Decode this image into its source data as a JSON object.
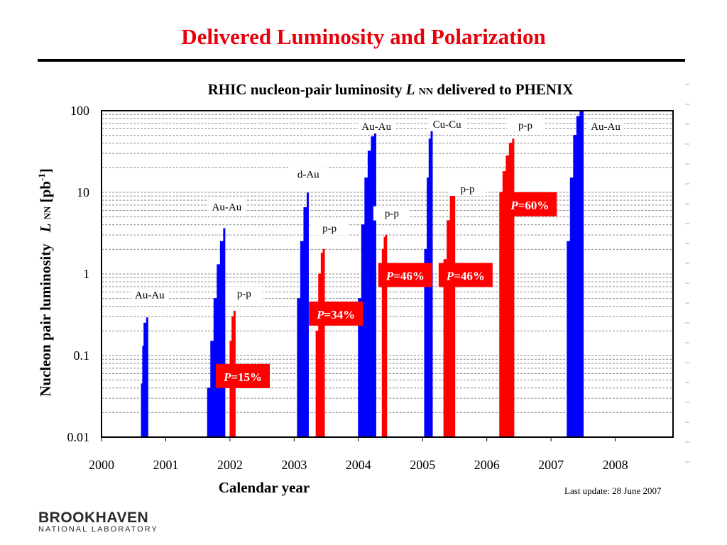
{
  "slide_title": "Delivered Luminosity and Polarization",
  "chart_title": {
    "prefix": "RHIC nucleon-pair luminosity ",
    "symbol": "L",
    "subscript": "NN",
    "suffix": " delivered to PHENIX"
  },
  "ylabel": {
    "text": "Nucleon pair luminosity",
    "symbol": "L",
    "subscript": "NN",
    "unit": "[pb",
    "unit_sup": "-1",
    "unit_close": "]"
  },
  "xlabel": "Calendar year",
  "last_update": "Last update: 28 June 2007",
  "logo": {
    "main": "BROOKHAVEN",
    "sub": "NATIONAL LABORATORY"
  },
  "colors": {
    "title": "#e8000b",
    "heavy_ion": "#0000ff",
    "polarized_pp": "#ff0000",
    "polarization_box": "#ff0000"
  },
  "chart_data": {
    "type": "area",
    "title": "RHIC nucleon-pair luminosity L NN delivered to PHENIX",
    "xlabel": "Calendar year",
    "ylabel": "Nucleon pair luminosity L NN [pb-1]",
    "x_ticks": [
      "2000",
      "2001",
      "2002",
      "2003",
      "2004",
      "2005",
      "2006",
      "2007",
      "2008"
    ],
    "y_ticks": [
      "0.01",
      "0.1",
      "1",
      "10",
      "100"
    ],
    "xlim": [
      2000,
      2008.9
    ],
    "ylim": [
      0.01,
      100
    ],
    "y_scale": "log",
    "grid": "horizontal dashed",
    "series": [
      {
        "species": "Au-Au",
        "kind": "heavy_ion",
        "x": [
          2000.6,
          2000.62,
          2000.64,
          2000.66,
          2000.7
        ],
        "y": [
          0.01,
          0.045,
          0.13,
          0.25,
          0.29
        ]
      },
      {
        "species": "Au-Au",
        "kind": "heavy_ion",
        "x": [
          2001.6,
          2001.65,
          2001.7,
          2001.75,
          2001.8,
          2001.85,
          2001.9
        ],
        "y": [
          0.01,
          0.04,
          0.15,
          0.5,
          1.3,
          2.5,
          3.6
        ]
      },
      {
        "species": "p-p",
        "kind": "polarized_pp",
        "x": [
          2001.98,
          2002.0,
          2002.03,
          2002.06
        ],
        "y": [
          0.01,
          0.15,
          0.3,
          0.35
        ]
      },
      {
        "species": "d-Au",
        "kind": "heavy_ion",
        "x": [
          2003.0,
          2003.05,
          2003.1,
          2003.15,
          2003.2
        ],
        "y": [
          0.01,
          0.5,
          2.5,
          6.5,
          9.8
        ]
      },
      {
        "species": "p-p",
        "kind": "polarized_pp",
        "x": [
          2003.3,
          2003.34,
          2003.38,
          2003.42,
          2003.45
        ],
        "y": [
          0.01,
          0.2,
          1.0,
          1.8,
          2.0
        ]
      },
      {
        "species": "Au-Au",
        "kind": "heavy_ion",
        "x": [
          2003.95,
          2004.0,
          2004.05,
          2004.1,
          2004.15,
          2004.2,
          2004.25
        ],
        "y": [
          0.01,
          0.5,
          4.0,
          15,
          32,
          48,
          53
        ]
      },
      {
        "species": "p-p",
        "kind": "polarized_pp",
        "x": [
          2004.34,
          2004.37,
          2004.4,
          2004.42
        ],
        "y": [
          0.01,
          2.0,
          2.8,
          3.0
        ]
      },
      {
        "species": "Cu-Cu",
        "kind": "heavy_ion",
        "x": [
          2005.0,
          2005.03,
          2005.07,
          2005.1,
          2005.13
        ],
        "y": [
          0.01,
          2.0,
          15,
          45,
          62
        ]
      },
      {
        "species": "p-p",
        "kind": "polarized_pp",
        "x": [
          2005.28,
          2005.33,
          2005.38,
          2005.43,
          2005.48
        ],
        "y": [
          0.01,
          1.5,
          4.5,
          9,
          13
        ]
      },
      {
        "species": "p-p",
        "kind": "polarized_pp",
        "x": [
          2006.15,
          2006.2,
          2006.25,
          2006.3,
          2006.35,
          2006.4
        ],
        "y": [
          0.01,
          10,
          18,
          28,
          40,
          45
        ]
      },
      {
        "species": "Au-Au",
        "kind": "heavy_ion",
        "x": [
          2007.2,
          2007.25,
          2007.3,
          2007.35,
          2007.4,
          2007.45,
          2007.48
        ],
        "y": [
          0.01,
          2.5,
          15,
          50,
          85,
          100,
          100
        ]
      }
    ],
    "annotations": [
      {
        "text": "Au-Au",
        "x": 2000.75,
        "y": 0.5
      },
      {
        "text": "Au-Au",
        "x": 2001.95,
        "y": 6.0
      },
      {
        "text": "p-p",
        "x": 2002.22,
        "y": 0.52
      },
      {
        "text": "d-Au",
        "x": 2003.22,
        "y": 15
      },
      {
        "text": "p-p",
        "x": 2003.55,
        "y": 3.3
      },
      {
        "text": "Au-Au",
        "x": 2004.28,
        "y": 58
      },
      {
        "text": "p-p",
        "x": 2004.52,
        "y": 5.0
      },
      {
        "text": "Cu-Cu",
        "x": 2005.38,
        "y": 62
      },
      {
        "text": "p-p",
        "x": 2005.7,
        "y": 10
      },
      {
        "text": "p-p",
        "x": 2006.6,
        "y": 60
      },
      {
        "text": "Au-Au",
        "x": 2007.85,
        "y": 58
      }
    ],
    "polarization_labels": [
      {
        "text": "=15%",
        "x": 2002.2,
        "y": 0.055
      },
      {
        "text": "=34%",
        "x": 2003.65,
        "y": 0.32
      },
      {
        "text": "=46%",
        "x": 2004.73,
        "y": 0.95
      },
      {
        "text": "=46%",
        "x": 2005.67,
        "y": 0.95
      },
      {
        "text": "=60%",
        "x": 2006.67,
        "y": 7.0
      }
    ],
    "polarization_symbol": "P"
  }
}
